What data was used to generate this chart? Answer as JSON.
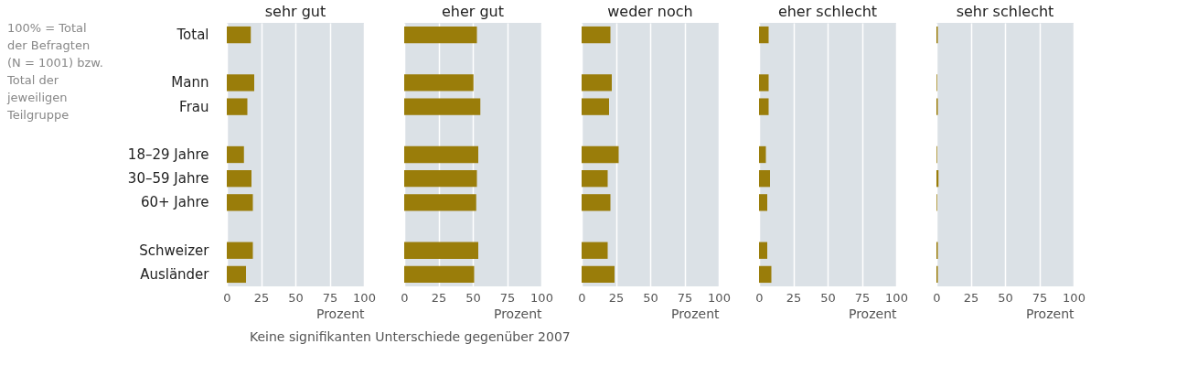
{
  "chart_data": [
    {
      "type": "bar",
      "orientation": "horizontal",
      "title": "sehr gut",
      "xlabel": "Prozent",
      "categories": [
        "Total",
        null,
        "Mann",
        "Frau",
        null,
        "18–29 Jahre",
        "30–59 Jahre",
        "60+ Jahre",
        null,
        "Schweizer",
        "Ausländer"
      ],
      "values": [
        17.5,
        null,
        20,
        15,
        null,
        12.5,
        18,
        19,
        null,
        19,
        14
      ],
      "color": "#9a7d0a",
      "xlim": [
        0,
        100
      ],
      "xticks": [
        0,
        25,
        50,
        75,
        100
      ],
      "grid": "x",
      "annotations": [
        "100% = Total der Befragten (N = 1001) bzw. Total der jeweiligen Teilgruppe",
        "Keine signifikanten Unterschiede gegenüber 2007"
      ]
    },
    {
      "type": "bar",
      "orientation": "horizontal",
      "title": "eher gut",
      "xlabel": "Prozent",
      "categories": [
        "Total",
        null,
        "Mann",
        "Frau",
        null,
        "18–29 Jahre",
        "30–59 Jahre",
        "60+ Jahre",
        null,
        "Schweizer",
        "Ausländer"
      ],
      "values": [
        53,
        null,
        50.5,
        55.5,
        null,
        54,
        53,
        52.5,
        null,
        54,
        51
      ],
      "color": "#9a7d0a",
      "xlim": [
        0,
        100
      ],
      "xticks": [
        0,
        25,
        50,
        75,
        100
      ],
      "grid": "x",
      "tick_labels": "x"
    },
    {
      "type": "bar",
      "orientation": "horizontal",
      "title": "weder noch",
      "xlabel": "Prozent",
      "categories": [
        "Total",
        null,
        "Mann",
        "Frau",
        null,
        "18–29 Jahre",
        "30–59 Jahre",
        "60+ Jahre",
        null,
        "Schweizer",
        "Ausländer"
      ],
      "values": [
        21,
        null,
        22,
        20,
        null,
        27,
        19,
        21,
        null,
        19,
        24
      ],
      "color": "#9a7d0a",
      "xlim": [
        0,
        100
      ],
      "xticks": [
        0,
        25,
        50,
        75,
        100
      ],
      "grid": "x",
      "tick_labels": "x"
    },
    {
      "type": "bar",
      "orientation": "horizontal",
      "title": "eher schlecht",
      "xlabel": "Prozent",
      "categories": [
        "Total",
        null,
        "Mann",
        "Frau",
        null,
        "18–29 Jahre",
        "30–59 Jahre",
        "60+ Jahre",
        null,
        "Schweizer",
        "Ausländer"
      ],
      "values": [
        7,
        null,
        7,
        7,
        null,
        5,
        8,
        6,
        null,
        6,
        9
      ],
      "color": "#9a7d0a",
      "xlim": [
        0,
        100
      ],
      "xticks": [
        0,
        25,
        50,
        75,
        100
      ],
      "grid": "x",
      "tick_labels": "x"
    },
    {
      "type": "bar",
      "orientation": "horizontal",
      "title": "sehr schlecht",
      "xlabel": "Prozent",
      "categories": [
        "Total",
        null,
        "Mann",
        "Frau",
        null,
        "18–29 Jahre",
        "30–59 Jahre",
        "60+ Jahre",
        null,
        "Schweizer",
        "Ausländer"
      ],
      "values": [
        1,
        null,
        0.5,
        1,
        null,
        0.5,
        1.5,
        0.5,
        null,
        1,
        1
      ],
      "color": "#9a7d0a",
      "xlim": [
        0,
        100
      ],
      "xticks": [
        0,
        25,
        50,
        75,
        100
      ],
      "grid": "x",
      "tick_labels": "x"
    }
  ]
}
